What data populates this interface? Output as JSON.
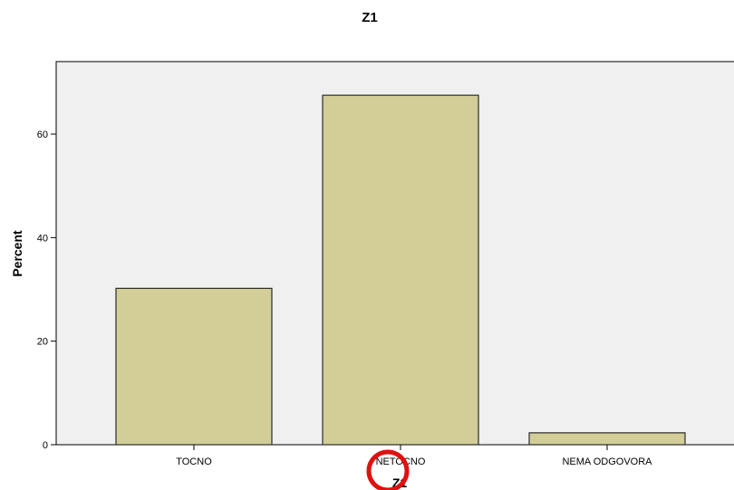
{
  "chart_data": {
    "type": "bar",
    "title": "Z1",
    "xlabel": "Z1",
    "ylabel": "Percent",
    "categories": [
      "TOCNO",
      "NETOCNO",
      "NEMA ODGOVORA"
    ],
    "values": [
      30.2,
      67.5,
      2.3
    ],
    "ylim": [
      0,
      74
    ],
    "yticks": [
      0,
      20,
      40,
      60
    ],
    "grid": false,
    "colors": {
      "bar_fill": "#d3ce97",
      "bar_stroke": "#2b2b2b",
      "plot_background": "#f0f0f0",
      "annotation_circle": "#e01010"
    }
  }
}
